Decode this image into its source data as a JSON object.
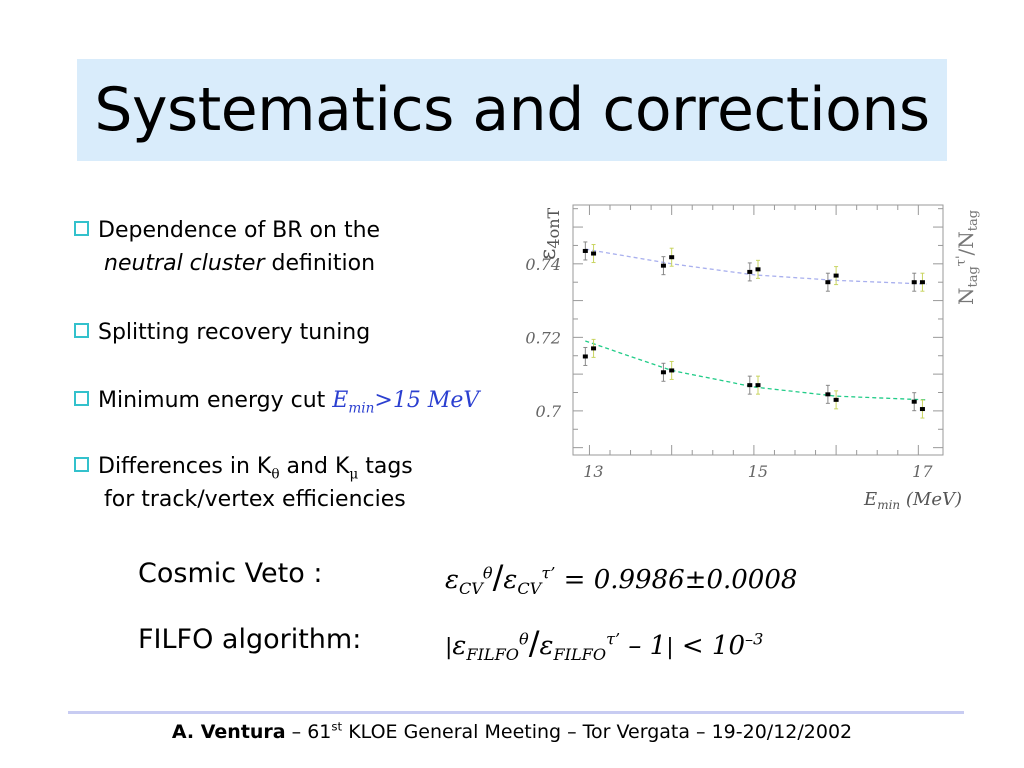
{
  "slide": {
    "title": "Systematics and corrections"
  },
  "bullets": {
    "b1_line1": "Dependence of BR on the",
    "b1_line2_italic": "neutral cluster",
    "b1_line2_rest": " definition",
    "b2": "Splitting recovery tuning",
    "b3_text": "Minimum energy cut ",
    "b3_e": "E",
    "b3_sub": "min",
    "b3_rest": ">15 MeV",
    "b4_pre": "Differences in K",
    "b4_sub1": "θ",
    "b4_mid": " and K",
    "b4_sub2": "μ",
    "b4_post": " tags",
    "b4_line2": "for track/vertex efficiencies"
  },
  "chart_data": {
    "type": "scatter",
    "ylabel_left": "ε4onT",
    "ylabel_right": "Ntagτ'/Ntag",
    "xlabel": "Emin (MeV)",
    "xlim": [
      12.8,
      17.3
    ],
    "ylim": [
      0.688,
      0.756
    ],
    "x_ticks": [
      "13",
      "15",
      "17"
    ],
    "y_ticks": [
      "0.74",
      "0.72",
      "0.7"
    ],
    "y_tick_values": [
      0.74,
      0.72,
      0.7
    ],
    "x_tick_values": [
      13,
      15,
      17
    ],
    "series": [
      {
        "fit_color": "#a9b0ee",
        "points": [
          {
            "x": 12.95,
            "y": 0.7435
          },
          {
            "x": 13.05,
            "y": 0.7428
          },
          {
            "x": 13.9,
            "y": 0.7395
          },
          {
            "x": 14.0,
            "y": 0.7418
          },
          {
            "x": 14.95,
            "y": 0.7378
          },
          {
            "x": 15.05,
            "y": 0.7385
          },
          {
            "x": 15.9,
            "y": 0.735
          },
          {
            "x": 16.0,
            "y": 0.7368
          },
          {
            "x": 16.95,
            "y": 0.735
          },
          {
            "x": 17.05,
            "y": 0.735
          }
        ],
        "fit": [
          0.744,
          0.74,
          0.737,
          0.7355,
          0.7345
        ]
      },
      {
        "fit_color": "#22cc88",
        "points": [
          {
            "x": 12.95,
            "y": 0.7148
          },
          {
            "x": 13.05,
            "y": 0.717
          },
          {
            "x": 13.9,
            "y": 0.7105
          },
          {
            "x": 14.0,
            "y": 0.711
          },
          {
            "x": 14.95,
            "y": 0.707
          },
          {
            "x": 15.05,
            "y": 0.707
          },
          {
            "x": 15.9,
            "y": 0.7045
          },
          {
            "x": 16.0,
            "y": 0.703
          },
          {
            "x": 16.95,
            "y": 0.7025
          },
          {
            "x": 17.05,
            "y": 0.7005
          }
        ],
        "fit": [
          0.719,
          0.711,
          0.7065,
          0.704,
          0.703
        ]
      }
    ]
  },
  "formulas": {
    "cv_label": "Cosmic Veto :",
    "filfo_label": "FILFO algorithm:",
    "cv_eps": "ε",
    "cv_sub": "CV",
    "cv_sup1": "θ",
    "cv_slash": "/",
    "cv_sup2": "τ’",
    "cv_value": " = 0.9986±0.0008",
    "filfo_bar": "|",
    "filfo_eps": "ε",
    "filfo_sub": "FILFO",
    "filfo_sup1": "θ",
    "filfo_sup2": "τ’",
    "filfo_rest": " – 1",
    "filfo_bar2": "|",
    "filfo_lt": " < 10",
    "filfo_exp": "–3"
  },
  "footer": {
    "author": "A. Ventura",
    "sep1": " – 61",
    "st": "st",
    "rest": " KLOE General Meeting – Tor Vergata – 19-20/12/2002"
  }
}
